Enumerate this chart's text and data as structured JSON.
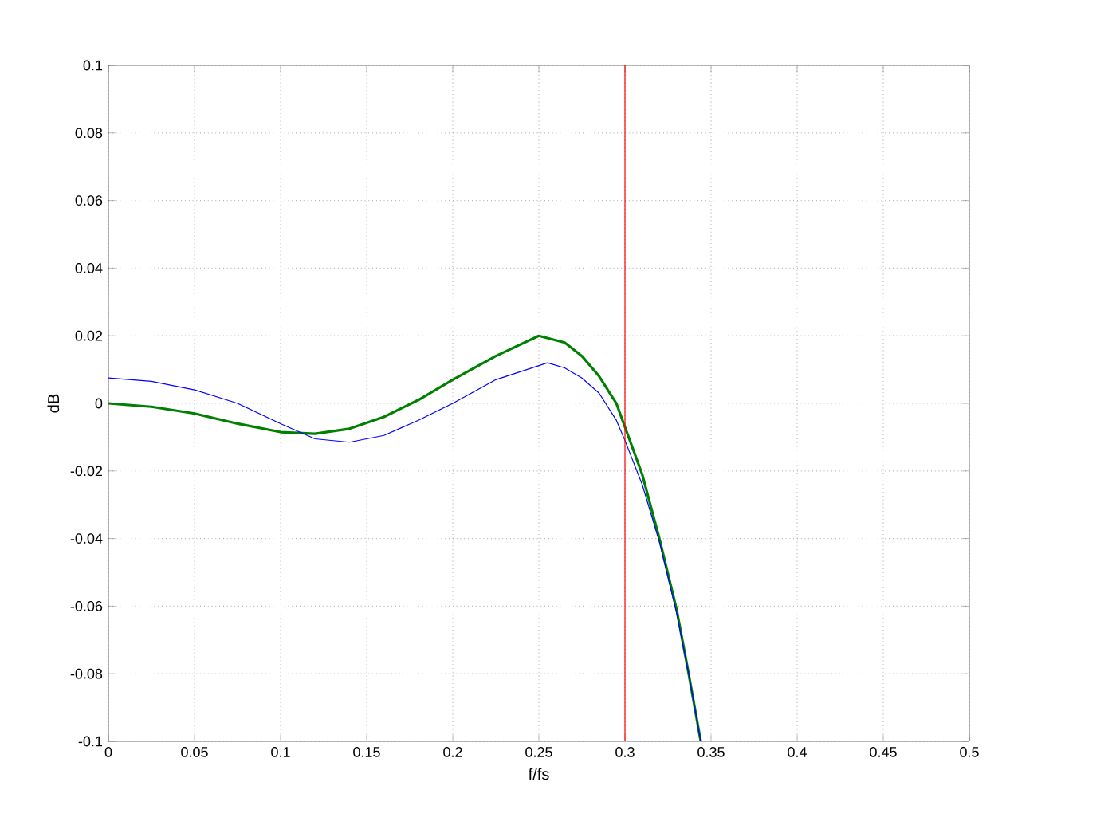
{
  "chart_data": {
    "type": "line",
    "xlabel": "f/fs",
    "ylabel": "dB",
    "xlim": [
      0,
      0.5
    ],
    "ylim": [
      -0.1,
      0.1
    ],
    "xticks": [
      0,
      0.05,
      0.1,
      0.15,
      0.2,
      0.25,
      0.3,
      0.35,
      0.4,
      0.45,
      0.5
    ],
    "yticks": [
      -0.1,
      -0.08,
      -0.06,
      -0.04,
      -0.02,
      0,
      0.02,
      0.04,
      0.06,
      0.08,
      0.1
    ],
    "grid": true,
    "series": [
      {
        "color": "#008000",
        "x": [
          0,
          0.025,
          0.05,
          0.075,
          0.1,
          0.12,
          0.14,
          0.16,
          0.18,
          0.2,
          0.225,
          0.25,
          0.265,
          0.275,
          0.285,
          0.295,
          0.3,
          0.31,
          0.32,
          0.33,
          0.337,
          0.344
        ],
        "values": [
          0,
          -0.001,
          -0.003,
          -0.006,
          -0.0085,
          -0.009,
          -0.0075,
          -0.004,
          0.001,
          0.007,
          0.014,
          0.02,
          0.018,
          0.014,
          0.008,
          0.0,
          -0.007,
          -0.021,
          -0.04,
          -0.061,
          -0.08,
          -0.1
        ]
      },
      {
        "color": "#0000ff",
        "x": [
          0,
          0.025,
          0.05,
          0.075,
          0.1,
          0.12,
          0.14,
          0.16,
          0.18,
          0.2,
          0.225,
          0.255,
          0.265,
          0.275,
          0.285,
          0.295,
          0.3,
          0.31,
          0.32,
          0.33,
          0.337,
          0.344
        ],
        "values": [
          0.0075,
          0.0065,
          0.004,
          0.0,
          -0.006,
          -0.0105,
          -0.0115,
          -0.0095,
          -0.005,
          0.0,
          0.007,
          0.012,
          0.0105,
          0.0075,
          0.003,
          -0.005,
          -0.011,
          -0.024,
          -0.041,
          -0.062,
          -0.08,
          -0.1
        ]
      }
    ],
    "ref_lines": [
      {
        "axis": "x",
        "value": 0.3,
        "color": "#ff0000"
      }
    ]
  }
}
